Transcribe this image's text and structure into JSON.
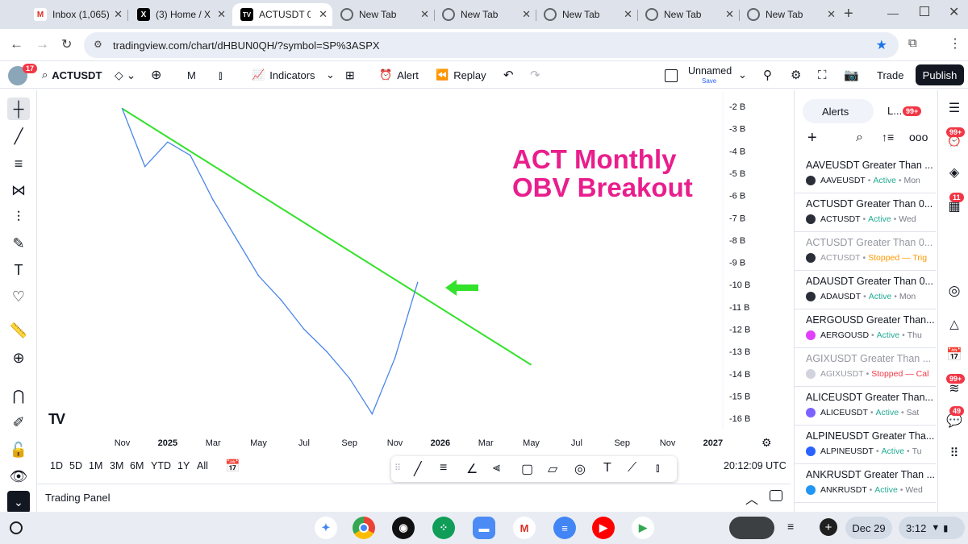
{
  "browser": {
    "tabs": [
      {
        "label": "Inbox (1,065)",
        "icon": "gmail-icon"
      },
      {
        "label": "(3) Home / X",
        "icon": "x-icon"
      },
      {
        "label": "ACTUSDT 0.0",
        "icon": "tradingview-icon"
      },
      {
        "label": "New Tab",
        "icon": "chrome-icon"
      },
      {
        "label": "New Tab",
        "icon": "chrome-icon"
      },
      {
        "label": "New Tab",
        "icon": "chrome-icon"
      },
      {
        "label": "New Tab",
        "icon": "chrome-icon"
      },
      {
        "label": "New Tab",
        "icon": "chrome-icon"
      }
    ],
    "new_tab": "+",
    "url": "tradingview.com/chart/dHBUN0QH/?symbol=SP%3ASPX"
  },
  "header": {
    "avatar_badge": "17",
    "symbol": "ACTUSDT",
    "interval": "M",
    "indicators_label": "Indicators",
    "alert_label": "Alert",
    "replay_label": "Replay",
    "layout_name": "Unnamed",
    "layout_status": "Save",
    "trade_label": "Trade",
    "publish_label": "Publish"
  },
  "chart": {
    "annotation_line1": "ACT Monthly",
    "annotation_line2": "OBV Breakout",
    "annotation_color": "#e91e8c",
    "trendline_color": "#33e22b",
    "arrow_color": "#33e22b",
    "obv_color": "#4a86e8",
    "x_ticks": [
      "Nov",
      "2025",
      "Mar",
      "May",
      "Jul",
      "Sep",
      "Nov",
      "2026",
      "Mar",
      "May",
      "Jul",
      "Sep",
      "Nov",
      "2027"
    ],
    "y_ticks": [
      "-2 B",
      "-3 B",
      "-4 B",
      "-5 B",
      "-6 B",
      "-7 B",
      "-8 B",
      "-9 B",
      "-10 B",
      "-11 B",
      "-12 B",
      "-13 B",
      "-14 B",
      "-15 B",
      "-16 B"
    ]
  },
  "chart_data": {
    "type": "line",
    "title": "ACT Monthly OBV Breakout",
    "xlabel": "",
    "ylabel": "",
    "ylim": [
      -16,
      -2
    ],
    "x": [
      "2024-11",
      "2024-12",
      "2025-01",
      "2025-02",
      "2025-03",
      "2025-04",
      "2025-05",
      "2025-06",
      "2025-07",
      "2025-08",
      "2025-09",
      "2025-10",
      "2025-11",
      "2025-12"
    ],
    "series": [
      {
        "values": [
          -2.1,
          -4.7,
          -3.6,
          -4.2,
          -6.2,
          -7.9,
          -9.6,
          -10.7,
          -12.0,
          -13.0,
          -14.2,
          -15.8,
          -13.3,
          -9.9
        ]
      }
    ],
    "trendline": {
      "from": [
        "2024-11",
        -2.1
      ],
      "to": [
        "2026-05",
        -13.6
      ]
    }
  },
  "bottom": {
    "ranges": [
      "1D",
      "5D",
      "1M",
      "3M",
      "6M",
      "YTD",
      "1Y",
      "All"
    ],
    "time": "20:12:09 UTC",
    "trading_panel_label": "Trading Panel"
  },
  "alerts_panel": {
    "tab_alerts": "Alerts",
    "tab_log": "L...",
    "tab_log_badge": "99+",
    "items": [
      {
        "title": "AAVEUSDT Greater Than ...",
        "symbol": "AAVEUSDT",
        "status": "Active",
        "when": "Mon",
        "stopped": false
      },
      {
        "title": "ACTUSDT Greater Than 0...",
        "symbol": "ACTUSDT",
        "status": "Active",
        "when": "Wed",
        "stopped": false
      },
      {
        "title": "ACTUSDT Greater Than 0...",
        "symbol": "ACTUSDT",
        "status": "Stopped — Trig",
        "when": "",
        "stopped": true
      },
      {
        "title": "ADAUSDT Greater Than 0...",
        "symbol": "ADAUSDT",
        "status": "Active",
        "when": "Mon",
        "stopped": false
      },
      {
        "title": "AERGOUSD Greater Than...",
        "symbol": "AERGOUSD",
        "status": "Active",
        "when": "Thu",
        "stopped": false
      },
      {
        "title": "AGIXUSDT Greater Than ...",
        "symbol": "AGIXUSDT",
        "status": "Stopped — Cal",
        "when": "",
        "stopped": true
      },
      {
        "title": "ALICEUSDT Greater Than...",
        "symbol": "ALICEUSDT",
        "status": "Active",
        "when": "Sat",
        "stopped": false
      },
      {
        "title": "ALPINEUSDT Greater Tha...",
        "symbol": "ALPINEUSDT",
        "status": "Active",
        "when": "Tu",
        "stopped": false
      },
      {
        "title": "ANKRUSDT Greater Than ...",
        "symbol": "ANKRUSDT",
        "status": "Active",
        "when": "Wed",
        "stopped": false
      }
    ]
  },
  "right_sidebar_badges": {
    "chat": "99+",
    "calendar": "11",
    "notifications": "99+",
    "ideas": "49"
  },
  "shelf": {
    "date": "Dec 29",
    "time": "3:12"
  }
}
